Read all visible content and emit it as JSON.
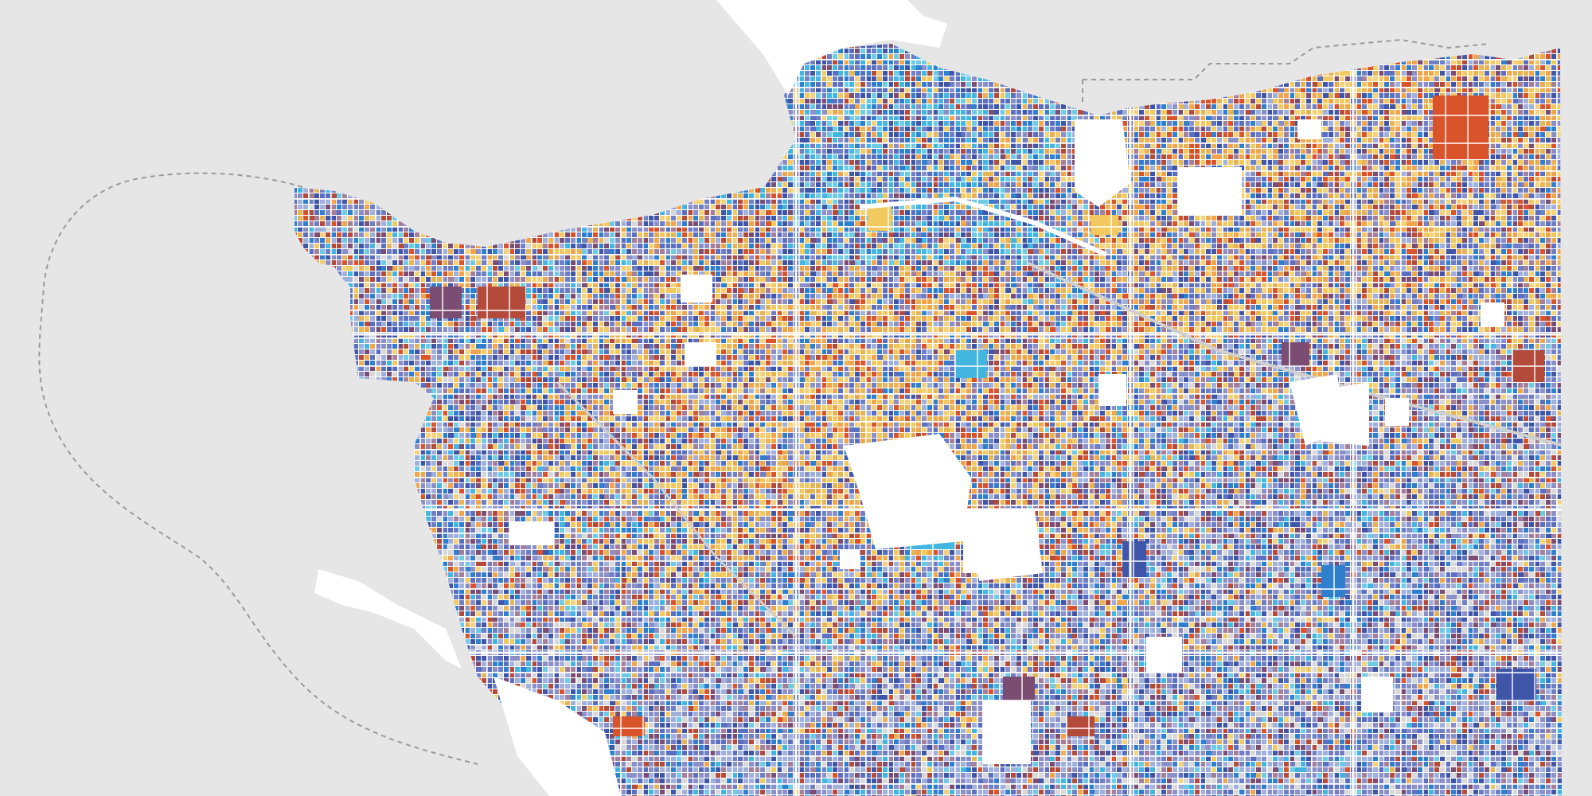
{
  "map": {
    "style": "parcel choropleth",
    "background_color": "#e6e6e6",
    "land_base_color": "#ffffff",
    "boundary_line_color": "#9a9a9a",
    "parcel_palette": [
      "#5a6fbf",
      "#3f55a8",
      "#6f7fc6",
      "#8a8fc8",
      "#a47f9a",
      "#7b4d73",
      "#b44a3a",
      "#d9532b",
      "#f0a54a",
      "#e6b455",
      "#f2c95f",
      "#f3d27a",
      "#9fb0dd",
      "#42b6e0",
      "#6ecbe6",
      "#2f7fcf",
      "#d8d8d8"
    ],
    "parks_color": "#ffffff",
    "roads_color": "#ffffff",
    "rail_color": "#cfcfcf"
  }
}
